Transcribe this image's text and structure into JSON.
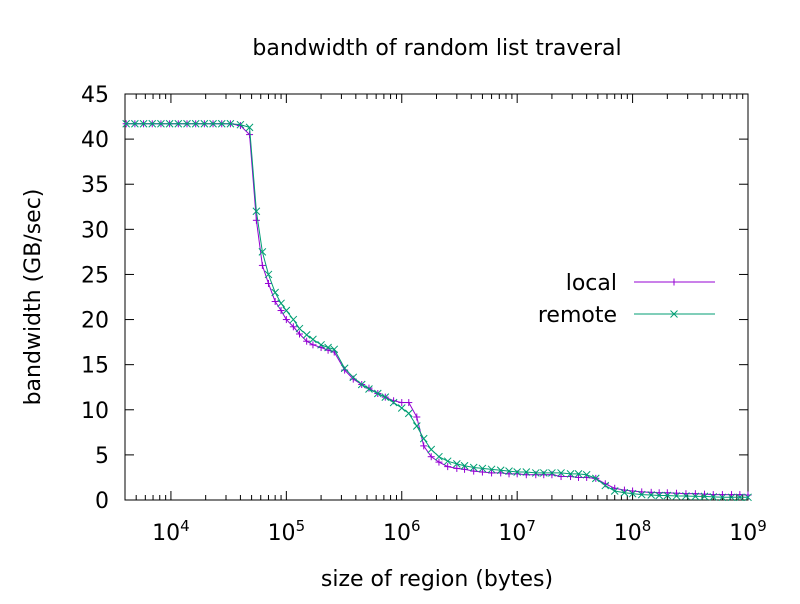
{
  "chart_data": {
    "type": "line",
    "title": "bandwidth of random list traveral",
    "xlabel": "size of region (bytes)",
    "ylabel": "bandwidth (GB/sec)",
    "xscale": "log",
    "xlim": [
      4000,
      1000000000
    ],
    "ylim": [
      0,
      45
    ],
    "x_major_ticks": [
      {
        "base": "10",
        "exp": "4",
        "value": 10000
      },
      {
        "base": "10",
        "exp": "5",
        "value": 100000
      },
      {
        "base": "10",
        "exp": "6",
        "value": 1000000
      },
      {
        "base": "10",
        "exp": "7",
        "value": 10000000
      },
      {
        "base": "10",
        "exp": "8",
        "value": 100000000
      },
      {
        "base": "10",
        "exp": "9",
        "value": 1000000000
      }
    ],
    "y_ticks": [
      {
        "label": "0",
        "value": 0
      },
      {
        "label": "5",
        "value": 5
      },
      {
        "label": "10",
        "value": 10
      },
      {
        "label": "15",
        "value": 15
      },
      {
        "label": "20",
        "value": 20
      },
      {
        "label": "25",
        "value": 25
      },
      {
        "label": "30",
        "value": 30
      },
      {
        "label": "35",
        "value": 35
      },
      {
        "label": "40",
        "value": 40
      },
      {
        "label": "45",
        "value": 45
      }
    ],
    "grid": false,
    "legend_position": "right",
    "series": [
      {
        "name": "local",
        "color": "#9400d3",
        "marker": "plus",
        "points": [
          [
            4096,
            41.7
          ],
          [
            4871,
            41.7
          ],
          [
            5793,
            41.7
          ],
          [
            6889,
            41.7
          ],
          [
            8192,
            41.7
          ],
          [
            9742,
            41.7
          ],
          [
            11585,
            41.7
          ],
          [
            13777,
            41.7
          ],
          [
            16384,
            41.7
          ],
          [
            19484,
            41.7
          ],
          [
            23170,
            41.7
          ],
          [
            27554,
            41.7
          ],
          [
            32768,
            41.7
          ],
          [
            40000,
            41.5
          ],
          [
            48000,
            40.5
          ],
          [
            55000,
            31.0
          ],
          [
            62000,
            26.0
          ],
          [
            70000,
            24.0
          ],
          [
            80000,
            22.0
          ],
          [
            90000,
            21.0
          ],
          [
            100000,
            20.0
          ],
          [
            115000,
            19.2
          ],
          [
            130000,
            18.4
          ],
          [
            150000,
            17.6
          ],
          [
            170000,
            17.2
          ],
          [
            200000,
            16.9
          ],
          [
            230000,
            16.6
          ],
          [
            260000,
            16.4
          ],
          [
            320000,
            14.4
          ],
          [
            380000,
            13.4
          ],
          [
            450000,
            12.8
          ],
          [
            520000,
            12.4
          ],
          [
            620000,
            11.8
          ],
          [
            720000,
            11.4
          ],
          [
            850000,
            11.0
          ],
          [
            1000000,
            10.8
          ],
          [
            1150000,
            10.8
          ],
          [
            1350000,
            9.2
          ],
          [
            1550000,
            6.0
          ],
          [
            1800000,
            4.8
          ],
          [
            2100000,
            4.2
          ],
          [
            2500000,
            3.7
          ],
          [
            3000000,
            3.5
          ],
          [
            3500000,
            3.4
          ],
          [
            4200000,
            3.2
          ],
          [
            5000000,
            3.1
          ],
          [
            6000000,
            3.0
          ],
          [
            7200000,
            3.0
          ],
          [
            8500000,
            2.9
          ],
          [
            10000000,
            2.9
          ],
          [
            12000000,
            2.8
          ],
          [
            14500000,
            2.8
          ],
          [
            17000000,
            2.8
          ],
          [
            20000000,
            2.8
          ],
          [
            24000000,
            2.6
          ],
          [
            29000000,
            2.6
          ],
          [
            34000000,
            2.5
          ],
          [
            40000000,
            2.5
          ],
          [
            48000000,
            2.4
          ],
          [
            58000000,
            1.8
          ],
          [
            70000000,
            1.3
          ],
          [
            85000000,
            1.1
          ],
          [
            100000000,
            1.0
          ],
          [
            120000000,
            0.9
          ],
          [
            145000000,
            0.85
          ],
          [
            170000000,
            0.8
          ],
          [
            200000000,
            0.8
          ],
          [
            240000000,
            0.75
          ],
          [
            290000000,
            0.7
          ],
          [
            350000000,
            0.7
          ],
          [
            420000000,
            0.65
          ],
          [
            500000000,
            0.6
          ],
          [
            600000000,
            0.6
          ],
          [
            720000000,
            0.6
          ],
          [
            850000000,
            0.6
          ],
          [
            1000000000,
            0.55
          ]
        ]
      },
      {
        "name": "remote",
        "color": "#009e73",
        "marker": "cross",
        "points": [
          [
            4096,
            41.7
          ],
          [
            4871,
            41.7
          ],
          [
            5793,
            41.7
          ],
          [
            6889,
            41.7
          ],
          [
            8192,
            41.7
          ],
          [
            9742,
            41.7
          ],
          [
            11585,
            41.7
          ],
          [
            13777,
            41.7
          ],
          [
            16384,
            41.7
          ],
          [
            19484,
            41.7
          ],
          [
            23170,
            41.7
          ],
          [
            27554,
            41.7
          ],
          [
            32768,
            41.7
          ],
          [
            40000,
            41.6
          ],
          [
            48000,
            41.3
          ],
          [
            55000,
            32.0
          ],
          [
            62000,
            27.5
          ],
          [
            70000,
            25.0
          ],
          [
            80000,
            23.0
          ],
          [
            90000,
            21.8
          ],
          [
            100000,
            21.0
          ],
          [
            115000,
            20.0
          ],
          [
            130000,
            19.0
          ],
          [
            150000,
            18.3
          ],
          [
            170000,
            17.8
          ],
          [
            200000,
            17.2
          ],
          [
            230000,
            16.9
          ],
          [
            260000,
            16.7
          ],
          [
            320000,
            14.6
          ],
          [
            380000,
            13.6
          ],
          [
            450000,
            12.8
          ],
          [
            520000,
            12.3
          ],
          [
            620000,
            11.8
          ],
          [
            720000,
            11.4
          ],
          [
            850000,
            10.8
          ],
          [
            1000000,
            10.2
          ],
          [
            1150000,
            9.6
          ],
          [
            1350000,
            8.2
          ],
          [
            1550000,
            6.8
          ],
          [
            1800000,
            5.6
          ],
          [
            2100000,
            4.8
          ],
          [
            2500000,
            4.3
          ],
          [
            3000000,
            4.0
          ],
          [
            3500000,
            3.8
          ],
          [
            4200000,
            3.6
          ],
          [
            5000000,
            3.5
          ],
          [
            6000000,
            3.4
          ],
          [
            7200000,
            3.3
          ],
          [
            8500000,
            3.2
          ],
          [
            10000000,
            3.1
          ],
          [
            12000000,
            3.1
          ],
          [
            14500000,
            3.0
          ],
          [
            17000000,
            3.0
          ],
          [
            20000000,
            3.0
          ],
          [
            24000000,
            3.0
          ],
          [
            29000000,
            2.9
          ],
          [
            34000000,
            2.9
          ],
          [
            40000000,
            2.8
          ],
          [
            48000000,
            2.4
          ],
          [
            58000000,
            1.6
          ],
          [
            70000000,
            1.0
          ],
          [
            85000000,
            0.8
          ],
          [
            100000000,
            0.7
          ],
          [
            120000000,
            0.6
          ],
          [
            145000000,
            0.55
          ],
          [
            170000000,
            0.5
          ],
          [
            200000000,
            0.5
          ],
          [
            240000000,
            0.45
          ],
          [
            290000000,
            0.45
          ],
          [
            350000000,
            0.4
          ],
          [
            420000000,
            0.4
          ],
          [
            500000000,
            0.35
          ],
          [
            600000000,
            0.3
          ],
          [
            720000000,
            0.3
          ],
          [
            850000000,
            0.3
          ],
          [
            1000000000,
            0.3
          ]
        ]
      }
    ]
  }
}
